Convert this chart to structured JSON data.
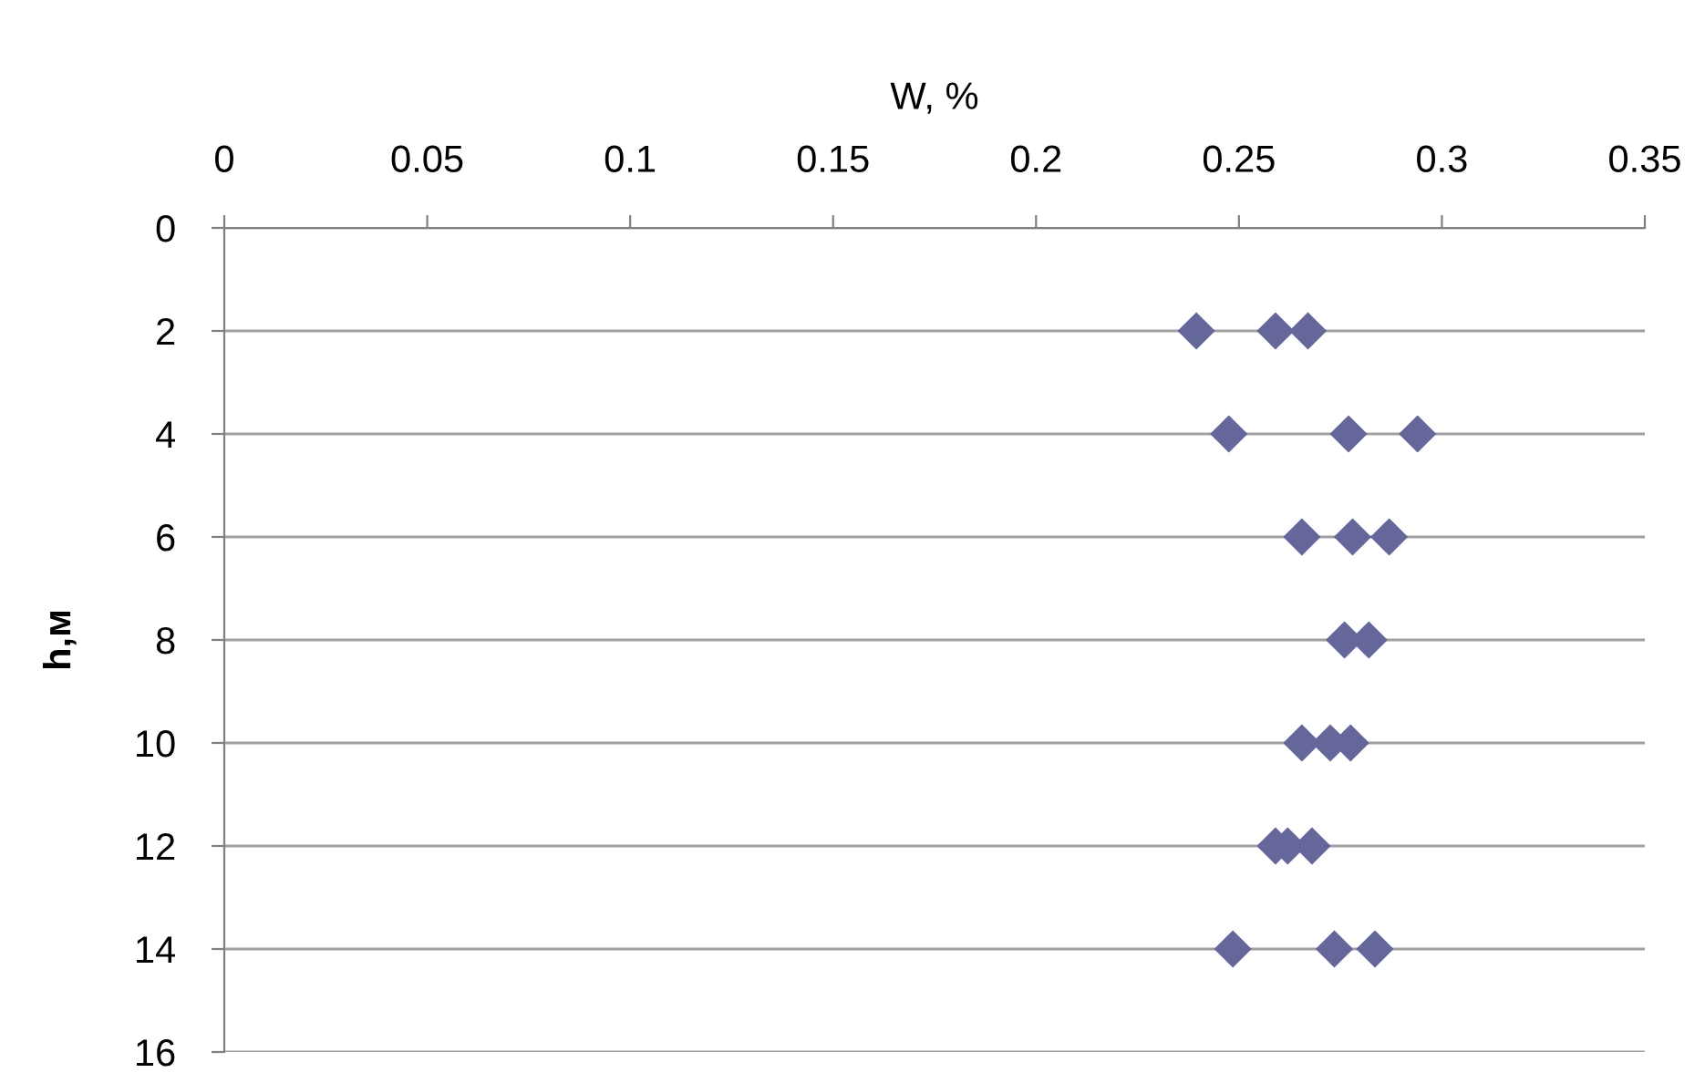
{
  "chart_data": {
    "type": "scatter",
    "xlabel": "W, %",
    "ylabel": "h,м",
    "x": [
      0.2395,
      0.259,
      0.267,
      0.2475,
      0.277,
      0.294,
      0.2655,
      0.278,
      0.287,
      0.276,
      0.282,
      0.2655,
      0.2725,
      0.2775,
      0.259,
      0.262,
      0.268,
      0.2485,
      0.2735,
      0.2835
    ],
    "series": [
      {
        "color": "#65679a",
        "values": [
          2,
          2,
          2,
          4,
          4,
          4,
          6,
          6,
          6,
          8,
          8,
          10,
          10,
          10,
          12,
          12,
          12,
          14,
          14,
          14
        ]
      }
    ],
    "marker": "diamond",
    "grid": "y",
    "xlim": [
      0,
      0.35
    ],
    "xticks": [
      0,
      0.05,
      0.1,
      0.15,
      0.2,
      0.25,
      0.3,
      0.35
    ],
    "ylim": [
      16,
      0
    ],
    "yticks": [
      0,
      2,
      4,
      6,
      8,
      10,
      12,
      14,
      16
    ]
  }
}
